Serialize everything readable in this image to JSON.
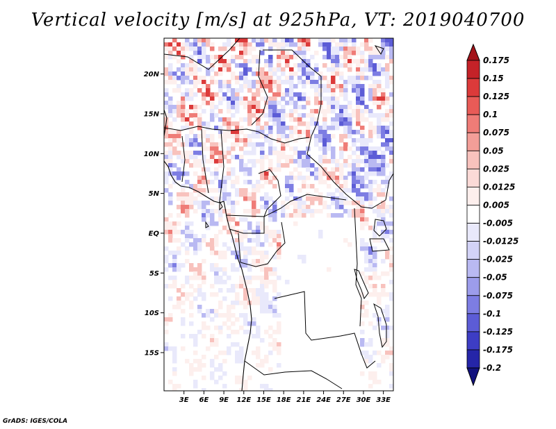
{
  "title": "Vertical velocity [m/s] at 925hPa, VT: 2019040700",
  "credit": "GrADS: IGES/COLA",
  "map": {
    "lat_labels": [
      "20N",
      "15N",
      "10N",
      "5N",
      "EQ",
      "5S",
      "10S",
      "15S"
    ],
    "lat_values": [
      20,
      15,
      10,
      5,
      0,
      -5,
      -10,
      -15
    ],
    "lon_labels": [
      "3E",
      "6E",
      "9E",
      "12E",
      "15E",
      "18E",
      "21E",
      "24E",
      "27E",
      "30E",
      "33E"
    ],
    "lon_values": [
      3,
      6,
      9,
      12,
      15,
      18,
      21,
      24,
      27,
      30,
      33
    ],
    "lon_range": [
      0,
      34.5
    ],
    "lat_range": [
      -19.8,
      24.5
    ]
  },
  "colorbar": {
    "labels": [
      "0.175",
      "0.15",
      "0.125",
      "0.1",
      "0.075",
      "0.05",
      "0.025",
      "0.0125",
      "0.005",
      "-0.005",
      "-0.0125",
      "-0.025",
      "-0.05",
      "-0.075",
      "-0.1",
      "-0.125",
      "-0.175",
      "-0.2"
    ],
    "colors": [
      "#a3141a",
      "#c42228",
      "#dc3a3a",
      "#e85b57",
      "#ef7c77",
      "#f39e98",
      "#f8c2bd",
      "#fbdad7",
      "#fdefed",
      "#ffffff",
      "#e9e9fb",
      "#d3d3f7",
      "#b9b9f2",
      "#9c9ceb",
      "#7d7de3",
      "#5c5cd6",
      "#3d3dc4",
      "#2525a8",
      "#12127e"
    ]
  }
}
